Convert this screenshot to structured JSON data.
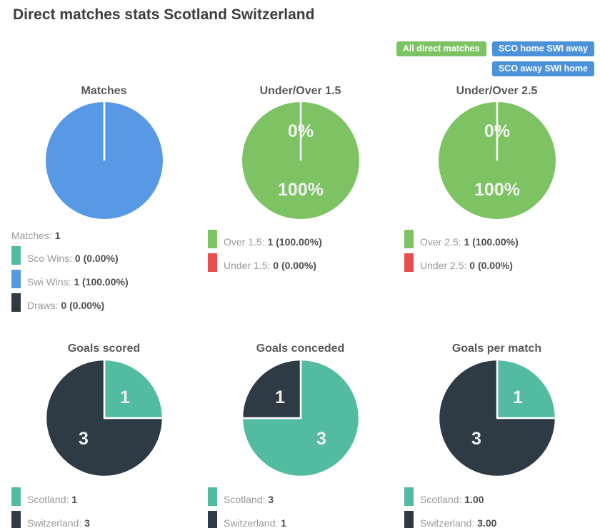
{
  "page": {
    "title": "Direct matches stats Scotland Switzerland"
  },
  "buttons": [
    {
      "label": "All direct matches",
      "color": "#7dc364"
    },
    {
      "label": "SCO home SWI away",
      "color": "#4c92db"
    },
    {
      "label": "SCO away SWI home",
      "color": "#4c92db"
    }
  ],
  "colors": {
    "teal": "#52bba1",
    "blue": "#5899e6",
    "green": "#7dc364",
    "red": "#e84e4e",
    "dark": "#2e3a44"
  },
  "chart_data": [
    {
      "type": "pie",
      "title": "Matches",
      "header": {
        "label": "Matches",
        "value": "1"
      },
      "slices": [
        {
          "name": "Sco Wins",
          "value": 0,
          "color": "#52bba1",
          "pie_label": null,
          "legend_value": "0 (0.00%)"
        },
        {
          "name": "Swi Wins",
          "value": 1,
          "color": "#5899e6",
          "pie_label": null,
          "legend_value": "1 (100.00%)"
        },
        {
          "name": "Draws",
          "value": 0,
          "color": "#2e3a44",
          "pie_label": null,
          "legend_value": "0 (0.00%)"
        }
      ]
    },
    {
      "type": "pie",
      "title": "Under/Over 1.5",
      "header": null,
      "slices": [
        {
          "name": "Over 1.5",
          "value": 1,
          "color": "#7dc364",
          "pie_label": "100%",
          "legend_value": "1 (100.00%)"
        },
        {
          "name": "Under 1.5",
          "value": 0,
          "color": "#e84e4e",
          "pie_label": "0%",
          "legend_value": "0 (0.00%)"
        }
      ]
    },
    {
      "type": "pie",
      "title": "Under/Over 2.5",
      "header": null,
      "slices": [
        {
          "name": "Over 2.5",
          "value": 1,
          "color": "#7dc364",
          "pie_label": "100%",
          "legend_value": "1 (100.00%)"
        },
        {
          "name": "Under 2.5",
          "value": 0,
          "color": "#e84e4e",
          "pie_label": "0%",
          "legend_value": "0 (0.00%)"
        }
      ]
    },
    {
      "type": "pie",
      "title": "Goals scored",
      "header": null,
      "slices": [
        {
          "name": "Scotland",
          "value": 1,
          "color": "#52bba1",
          "pie_label": "1",
          "legend_value": "1"
        },
        {
          "name": "Switzerland",
          "value": 3,
          "color": "#2e3a44",
          "pie_label": "3",
          "legend_value": "3"
        }
      ]
    },
    {
      "type": "pie",
      "title": "Goals conceded",
      "header": null,
      "slices": [
        {
          "name": "Scotland",
          "value": 3,
          "color": "#52bba1",
          "pie_label": "3",
          "legend_value": "3"
        },
        {
          "name": "Switzerland",
          "value": 1,
          "color": "#2e3a44",
          "pie_label": "1",
          "legend_value": "1"
        }
      ]
    },
    {
      "type": "pie",
      "title": "Goals per match",
      "header": null,
      "slices": [
        {
          "name": "Scotland",
          "value": 1,
          "color": "#52bba1",
          "pie_label": "1",
          "legend_value": "1.00"
        },
        {
          "name": "Switzerland",
          "value": 3,
          "color": "#2e3a44",
          "pie_label": "3",
          "legend_value": "3.00"
        }
      ]
    }
  ]
}
